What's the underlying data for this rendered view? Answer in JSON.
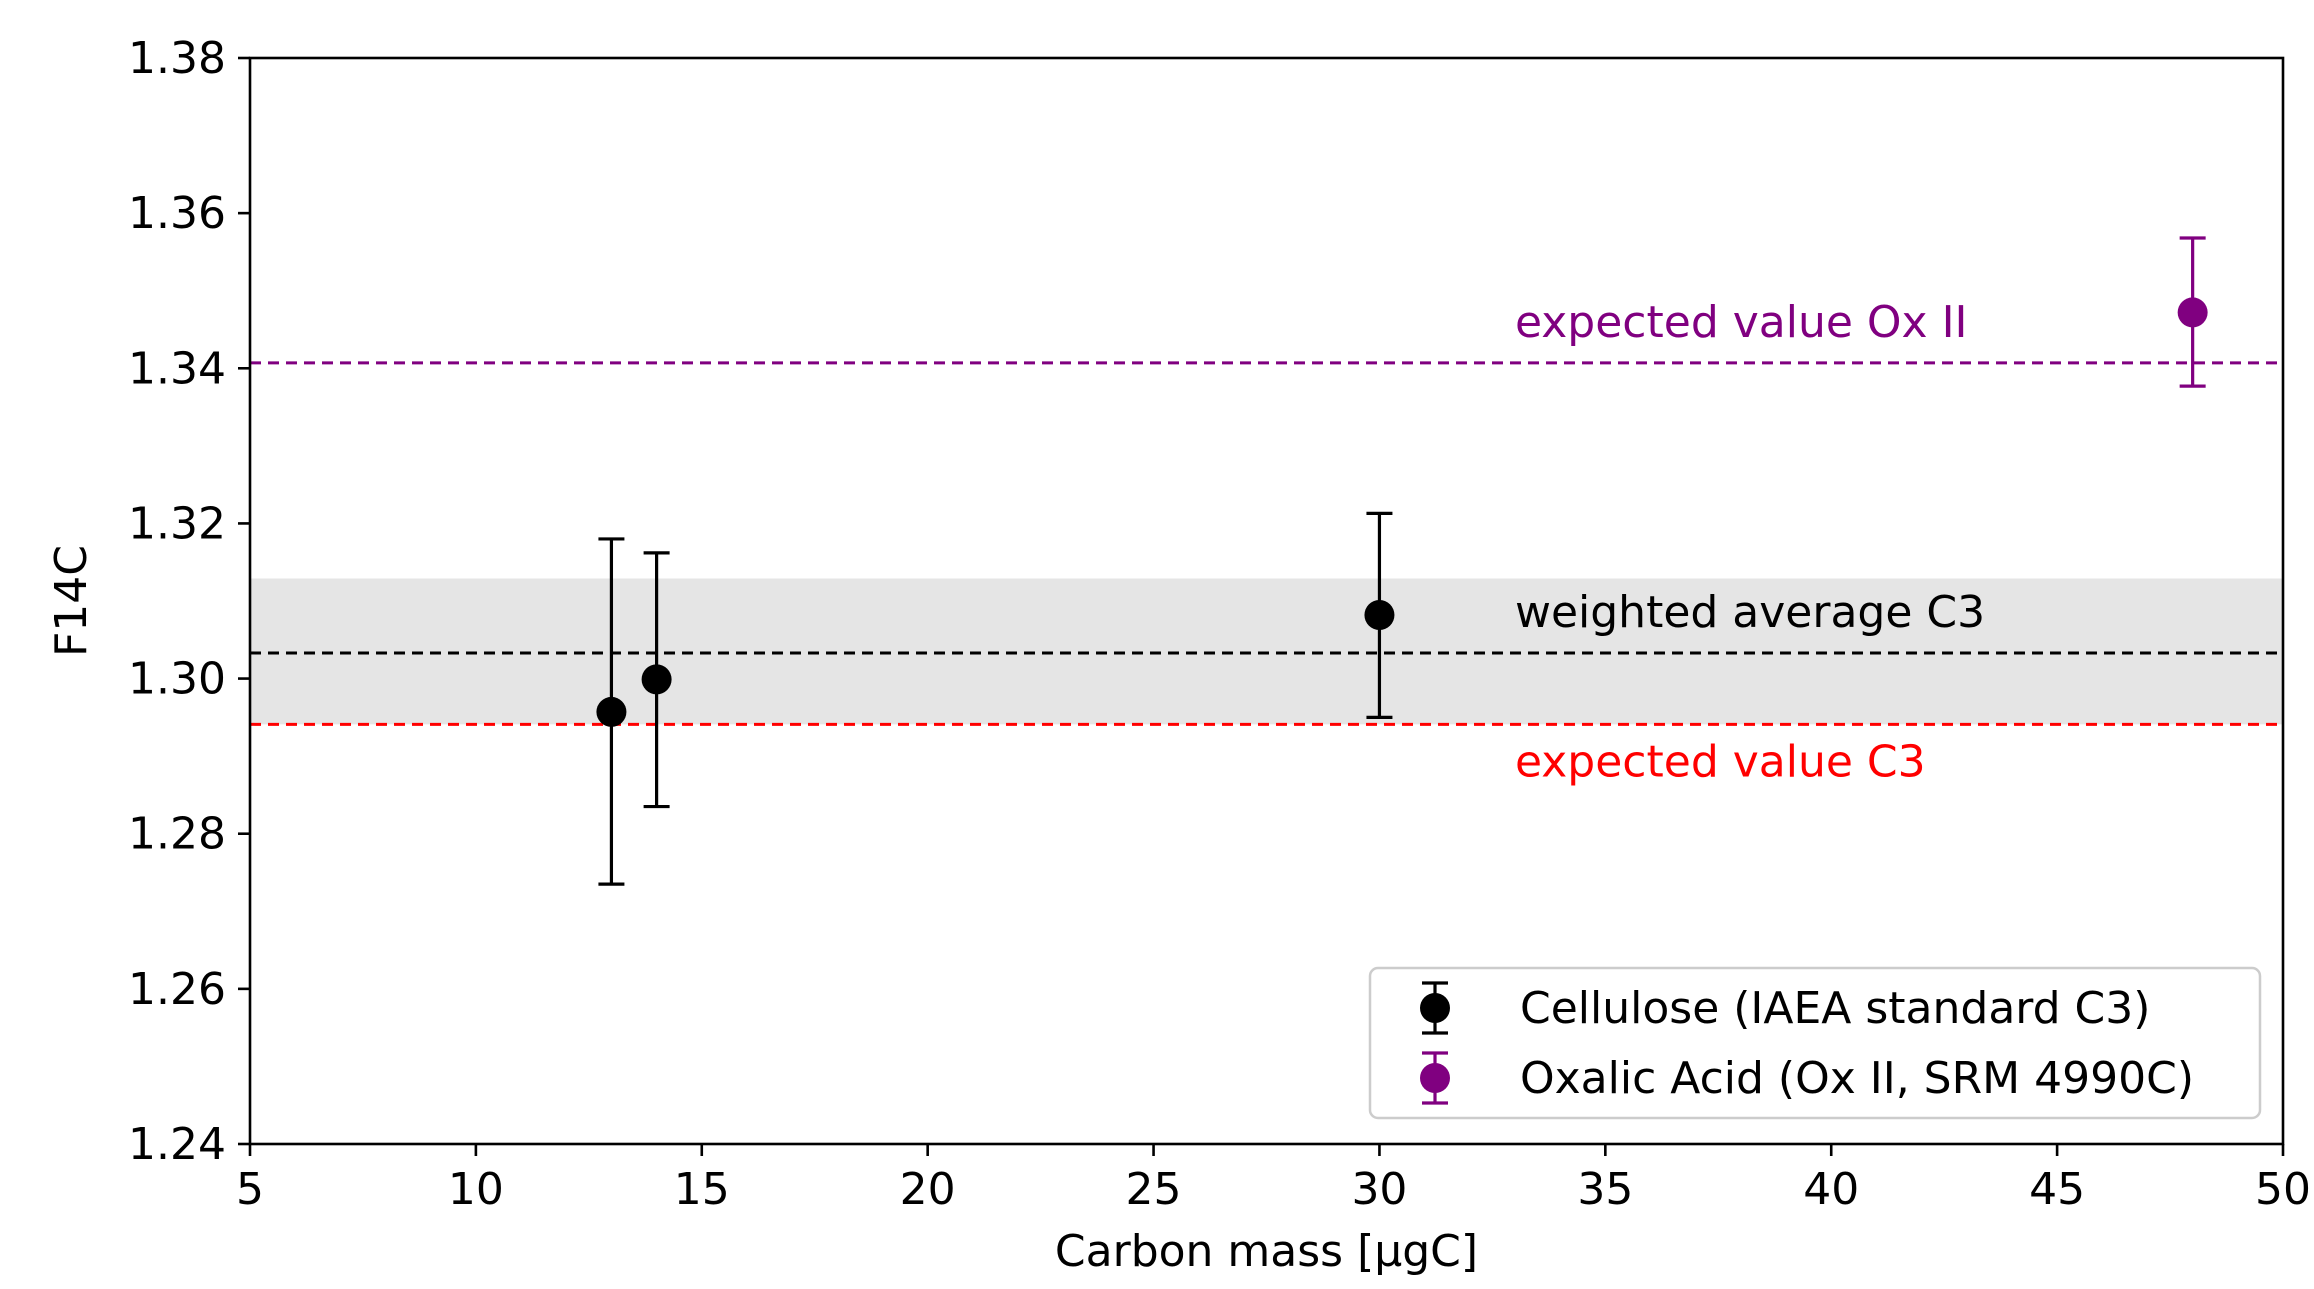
{
  "chart_data": {
    "type": "scatter",
    "title": "",
    "xlabel": "Carbon mass [μgC]",
    "ylabel": "F14C",
    "xlim": [
      5,
      50
    ],
    "ylim": [
      1.24,
      1.38
    ],
    "xticks": [
      5,
      10,
      15,
      20,
      25,
      30,
      35,
      40,
      45,
      50
    ],
    "xtick_labels": [
      "5",
      "10",
      "15",
      "20",
      "25",
      "30",
      "35",
      "40",
      "45",
      "50"
    ],
    "yticks": [
      1.24,
      1.26,
      1.28,
      1.3,
      1.32,
      1.34,
      1.36,
      1.38
    ],
    "ytick_labels": [
      "1.24",
      "1.26",
      "1.28",
      "1.30",
      "1.32",
      "1.34",
      "1.36",
      "1.38"
    ],
    "grid": false,
    "legend_position": "bottom-right",
    "series": [
      {
        "name": "Cellulose (IAEA standard C3)",
        "color": "#000000",
        "points": [
          {
            "x": 13,
            "y": 1.2957,
            "yerr_low": 1.2735,
            "yerr_high": 1.318
          },
          {
            "x": 14,
            "y": 1.2999,
            "yerr_low": 1.2835,
            "yerr_high": 1.3162
          },
          {
            "x": 30,
            "y": 1.3082,
            "yerr_low": 1.295,
            "yerr_high": 1.3213
          }
        ]
      },
      {
        "name": "Oxalic Acid (Ox II, SRM 4990C)",
        "color": "#800080",
        "points": [
          {
            "x": 48,
            "y": 1.3472,
            "yerr_low": 1.3377,
            "yerr_high": 1.3568
          }
        ]
      }
    ],
    "reference_lines": [
      {
        "label": "expected value Ox II",
        "y": 1.3407,
        "color": "#800080",
        "style": "dashed"
      },
      {
        "label": "weighted average C3",
        "y": 1.3033,
        "color": "#000000",
        "style": "dashed"
      },
      {
        "label": "expected value C3",
        "y": 1.2941,
        "color": "#ff0000",
        "style": "dashed"
      }
    ],
    "band": {
      "y_low": 1.2941,
      "y_high": 1.3129,
      "color": "#e5e5e5"
    }
  }
}
